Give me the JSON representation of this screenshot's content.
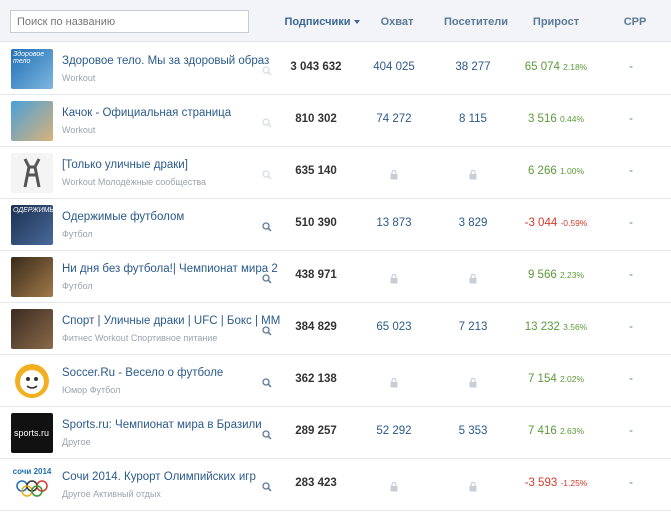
{
  "search": {
    "placeholder": "Поиск по названию"
  },
  "columns": {
    "subscribers": "Подписчики",
    "reach": "Охват",
    "visitors": "Посетители",
    "growth": "Прирост",
    "cpp": "CPP"
  },
  "colors": {
    "positive": "#5b9a3a",
    "negative": "#d33a2a",
    "link": "#2b5a8a"
  },
  "rows": [
    {
      "name": "Здоровое тело. Мы за здоровый образ",
      "category": "Workout",
      "subscribers": "3 043 632",
      "reach": "404 025",
      "visitors": "38 277",
      "growth": "65 074",
      "growth_pct": "2.18%",
      "cpp": "-",
      "negative": false,
      "avatar_text": "Здоровое тело"
    },
    {
      "name": "Качок - Официальная страница",
      "category": "Workout",
      "subscribers": "810 302",
      "reach": "74 272",
      "visitors": "8 115",
      "growth": "3 516",
      "growth_pct": "0.44%",
      "cpp": "-",
      "negative": false,
      "avatar_text": ""
    },
    {
      "name": "[Только уличные драки]",
      "category": "Workout Молодёжные сообщества",
      "subscribers": "635 140",
      "reach": null,
      "visitors": null,
      "growth": "6 266",
      "growth_pct": "1.00%",
      "cpp": "-",
      "negative": false,
      "avatar_text": ""
    },
    {
      "name": "Одержимые футболом",
      "category": "Футбол",
      "subscribers": "510 390",
      "reach": "13 873",
      "visitors": "3 829",
      "growth": "-3 044",
      "growth_pct": "-0.59%",
      "cpp": "-",
      "negative": true,
      "avatar_text": "ОДЕРЖИМЫЕ"
    },
    {
      "name": "Ни дня без футбола!| Чемпионат мира 2",
      "category": "Футбол",
      "subscribers": "438 971",
      "reach": null,
      "visitors": null,
      "growth": "9 566",
      "growth_pct": "2.23%",
      "cpp": "-",
      "negative": false,
      "avatar_text": ""
    },
    {
      "name": "Спорт | Уличные драки | UFC | Бокс | ММ",
      "category": "Фитнес Workout Спортивное питание",
      "subscribers": "384 829",
      "reach": "65 023",
      "visitors": "7 213",
      "growth": "13 232",
      "growth_pct": "3.56%",
      "cpp": "-",
      "negative": false,
      "avatar_text": ""
    },
    {
      "name": "Soccer.Ru - Весело о футболе",
      "category": "Юмор Футбол",
      "subscribers": "362 138",
      "reach": null,
      "visitors": null,
      "growth": "7 154",
      "growth_pct": "2.02%",
      "cpp": "-",
      "negative": false,
      "avatar_text": ""
    },
    {
      "name": "Sports.ru: Чемпионат мира в Бразили",
      "category": "Другое",
      "subscribers": "289 257",
      "reach": "52 292",
      "visitors": "5 353",
      "growth": "7 416",
      "growth_pct": "2.63%",
      "cpp": "-",
      "negative": false,
      "avatar_text": "sports.ru"
    },
    {
      "name": "Сочи 2014. Курорт Олимпийских игр",
      "category": "Другое Активный отдых",
      "subscribers": "283 423",
      "reach": null,
      "visitors": null,
      "growth": "-3 593",
      "growth_pct": "-1.25%",
      "cpp": "-",
      "negative": true,
      "avatar_text": "сочи 2014"
    }
  ]
}
